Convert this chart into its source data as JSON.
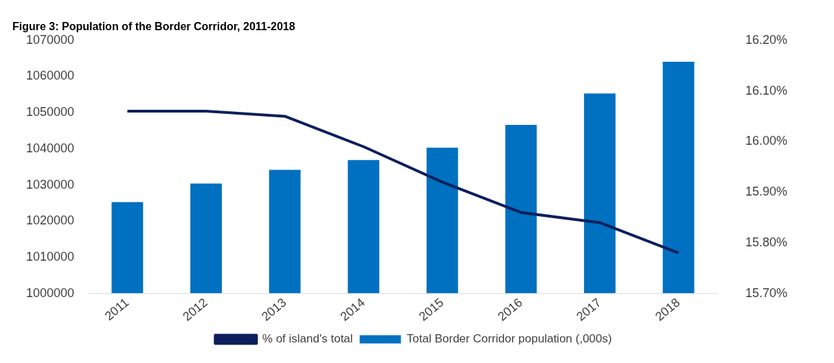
{
  "chart_data": {
    "type": "bar",
    "title": "Figure 3: Population of the Border Corridor, 2011-2018",
    "categories": [
      "2011",
      "2012",
      "2013",
      "2014",
      "2015",
      "2016",
      "2017",
      "2018"
    ],
    "series": [
      {
        "name": "Total Border Corridor population (,000s)",
        "color": "#0070c0",
        "values": [
          1025300,
          1030400,
          1034200,
          1036900,
          1040300,
          1046600,
          1055300,
          1064100
        ]
      },
      {
        "name": "% of island's total",
        "type": "line",
        "axis": "y2",
        "color": "#0c1f5c",
        "values": [
          16.06,
          16.06,
          16.05,
          15.99,
          15.92,
          15.86,
          15.84,
          15.78
        ]
      }
    ],
    "ylim": [
      1000000,
      1070000
    ],
    "yticks": [
      1000000,
      1010000,
      1020000,
      1030000,
      1040000,
      1050000,
      1060000,
      1070000
    ],
    "y2lim": [
      15.7,
      16.2
    ],
    "y2ticks": [
      {
        "value": 15.7,
        "label": "15.70%"
      },
      {
        "value": 15.8,
        "label": "15.80%"
      },
      {
        "value": 15.9,
        "label": "15.90%"
      },
      {
        "value": 16.0,
        "label": "16.00%"
      },
      {
        "value": 16.1,
        "label": "16.10%"
      },
      {
        "value": 16.2,
        "label": "16.20%"
      }
    ],
    "grid": false,
    "legend": "bottom",
    "marker": "none"
  }
}
